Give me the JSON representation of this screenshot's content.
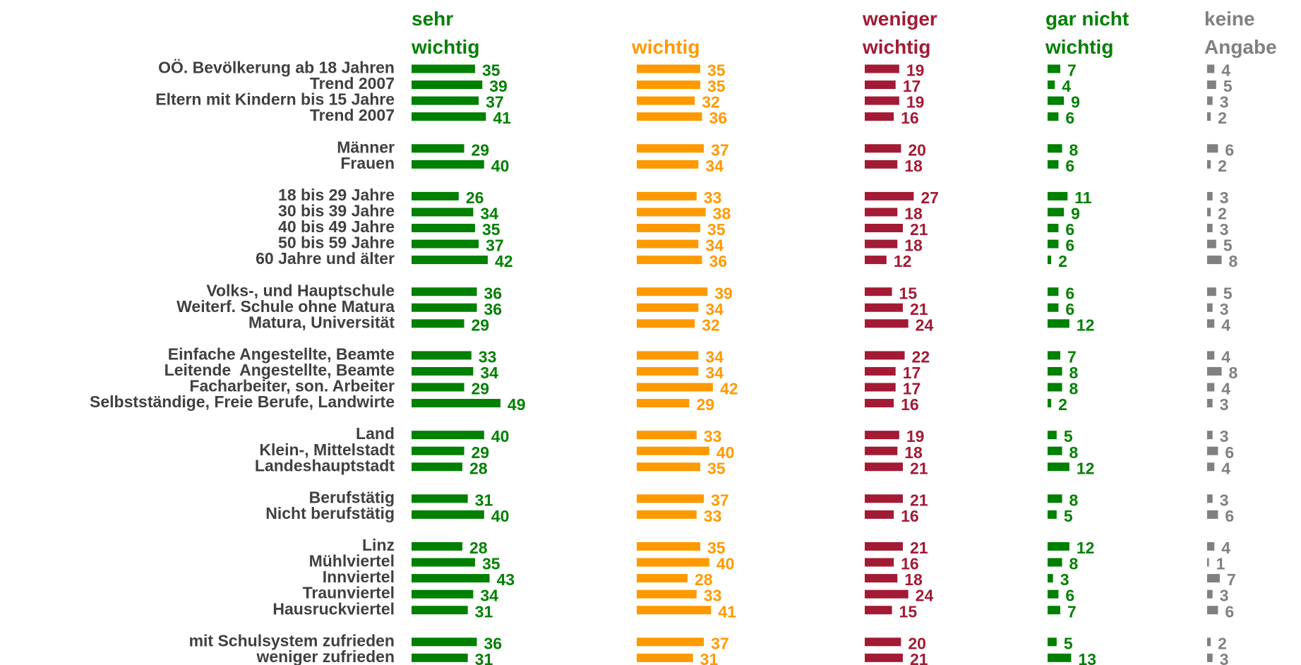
{
  "chart_data": {
    "type": "bar",
    "categories": [
      "OÖ. Bevölkerung ab 18 Jahren",
      "Trend 2007",
      "Eltern mit Kindern bis 15 Jahre",
      "Trend 2007",
      null,
      "Männer",
      "Frauen",
      null,
      "18 bis 29 Jahre",
      "30 bis 39 Jahre",
      "40 bis 49 Jahre",
      "50 bis 59 Jahre",
      "60 Jahre und älter",
      null,
      "Volks-, und Hauptschule",
      "Weiterf. Schule ohne Matura",
      "Matura, Universität",
      null,
      "Einfache Angestellte, Beamte",
      "Leitende  Angestellte, Beamte",
      "Facharbeiter, son. Arbeiter",
      "Selbstständige, Freie Berufe, Landwirte",
      null,
      "Land",
      "Klein-, Mittelstadt",
      "Landeshauptstadt",
      null,
      "Berufstätig",
      "Nicht berufstätig",
      null,
      "Linz",
      "Mühlviertel",
      "Innviertel",
      "Traunviertel",
      "Hausruckviertel",
      null,
      "mit Schulsystem zufrieden",
      "weniger zufrieden"
    ],
    "series": [
      {
        "name": "sehr wichtig",
        "color": "#008000",
        "values": [
          35,
          39,
          37,
          41,
          null,
          29,
          40,
          null,
          26,
          34,
          35,
          37,
          42,
          null,
          36,
          36,
          29,
          null,
          33,
          34,
          29,
          49,
          null,
          40,
          29,
          28,
          null,
          31,
          40,
          null,
          28,
          35,
          43,
          34,
          31,
          null,
          36,
          31
        ]
      },
      {
        "name": "wichtig",
        "color": "#ff9900",
        "values": [
          35,
          35,
          32,
          36,
          null,
          37,
          34,
          null,
          33,
          38,
          35,
          34,
          36,
          null,
          39,
          34,
          32,
          null,
          34,
          34,
          42,
          29,
          null,
          33,
          40,
          35,
          null,
          37,
          33,
          null,
          35,
          40,
          28,
          33,
          41,
          null,
          37,
          31
        ]
      },
      {
        "name": "weniger wichtig",
        "color": "#a31a35",
        "values": [
          19,
          17,
          19,
          16,
          null,
          20,
          18,
          null,
          27,
          18,
          21,
          18,
          12,
          null,
          15,
          21,
          24,
          null,
          22,
          17,
          17,
          16,
          null,
          19,
          18,
          21,
          null,
          21,
          16,
          null,
          21,
          16,
          18,
          24,
          15,
          null,
          20,
          21
        ]
      },
      {
        "name": "gar nicht wichtig",
        "color": "#008000",
        "values": [
          7,
          4,
          9,
          6,
          null,
          8,
          6,
          null,
          11,
          9,
          6,
          6,
          2,
          null,
          6,
          6,
          12,
          null,
          7,
          8,
          8,
          2,
          null,
          5,
          8,
          12,
          null,
          8,
          5,
          null,
          12,
          8,
          3,
          6,
          7,
          null,
          5,
          13
        ]
      },
      {
        "name": "keine Angabe",
        "color": "#808080",
        "values": [
          4,
          5,
          3,
          2,
          null,
          6,
          2,
          null,
          3,
          2,
          3,
          5,
          8,
          null,
          5,
          3,
          4,
          null,
          4,
          8,
          4,
          3,
          null,
          3,
          6,
          4,
          null,
          3,
          6,
          null,
          4,
          1,
          7,
          3,
          6,
          null,
          2,
          3
        ]
      }
    ]
  }
}
